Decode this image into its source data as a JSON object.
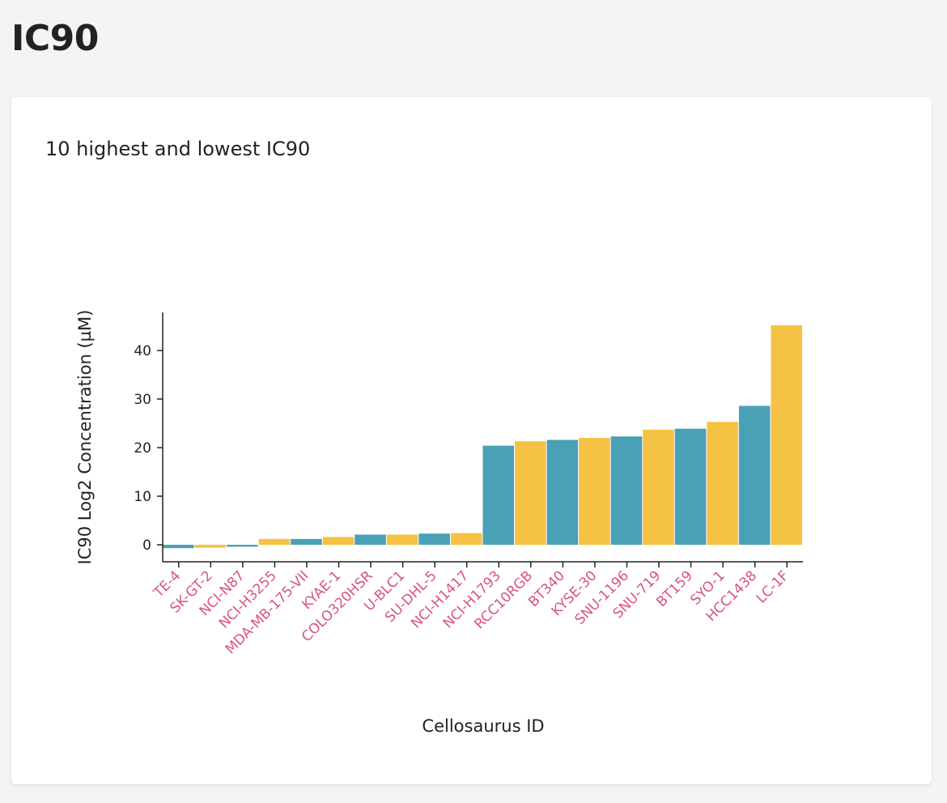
{
  "page": {
    "title": "IC90"
  },
  "card": {
    "title": "10 highest and lowest IC90"
  },
  "colors": {
    "teal": "#4aa0b6",
    "yellow": "#f5c244",
    "category_label": "#d9537f",
    "axis": "#222222"
  },
  "chart_data": {
    "type": "bar",
    "xlabel": "Cellosaurus ID",
    "ylabel": "IC90 Log2 Concentration (µM)",
    "ylim": [
      -3.5,
      47.5
    ],
    "yticks": [
      0,
      10,
      20,
      30,
      40
    ],
    "grid": false,
    "categories": [
      "TE-4",
      "SK-GT-2",
      "NCI-N87",
      "NCI-H3255",
      "MDA-MB-175-VII",
      "KYAE-1",
      "COLO320HSR",
      "U-BLC1",
      "SU-DHL-5",
      "NCI-H1417",
      "NCI-H1793",
      "RCC10RGB",
      "BT340",
      "KYSE-30",
      "SNU-1196",
      "SNU-719",
      "BT159",
      "SYO-1",
      "HCC1438",
      "LC-1F"
    ],
    "values": [
      -0.7,
      -0.6,
      -0.4,
      1.2,
      1.2,
      1.6,
      2.1,
      2.1,
      2.3,
      2.4,
      20.4,
      21.3,
      21.6,
      22.0,
      22.3,
      23.7,
      23.9,
      25.3,
      28.6,
      45.2
    ],
    "bar_colors": [
      "#4aa0b6",
      "#f5c244",
      "#4aa0b6",
      "#f5c244",
      "#4aa0b6",
      "#f5c244",
      "#4aa0b6",
      "#f5c244",
      "#4aa0b6",
      "#f5c244",
      "#4aa0b6",
      "#f5c244",
      "#4aa0b6",
      "#f5c244",
      "#4aa0b6",
      "#f5c244",
      "#4aa0b6",
      "#f5c244",
      "#4aa0b6",
      "#f5c244"
    ]
  }
}
